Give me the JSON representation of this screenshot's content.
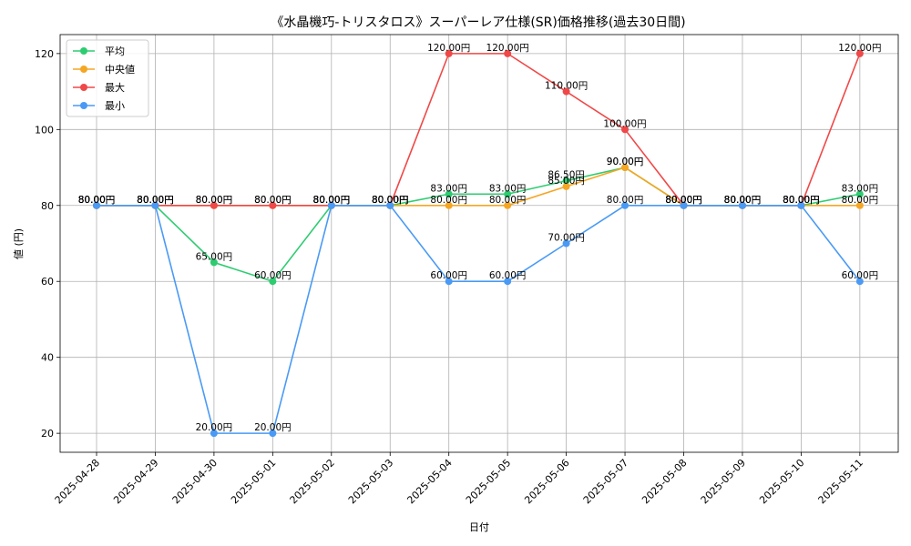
{
  "chart_data": {
    "type": "line",
    "title": "《水晶機巧-トリスタロス》スーパーレア仕様(SR)価格推移(過去30日間)",
    "xlabel": "日付",
    "ylabel": "値 (円)",
    "ylim": [
      15,
      125
    ],
    "yticks": [
      20,
      40,
      60,
      80,
      100,
      120
    ],
    "grid": true,
    "legend_position": "top-left",
    "label_suffix": "円",
    "categories": [
      "2025-04-28",
      "2025-04-29",
      "2025-04-30",
      "2025-05-01",
      "2025-05-02",
      "2025-05-03",
      "2025-05-04",
      "2025-05-05",
      "2025-05-06",
      "2025-05-07",
      "2025-05-08",
      "2025-05-09",
      "2025-05-10",
      "2025-05-11"
    ],
    "series": [
      {
        "name": "平均",
        "color": "#2ecc71",
        "values": [
          80,
          80,
          65,
          60,
          80,
          80,
          83,
          83,
          86.5,
          90,
          80,
          80,
          80,
          83
        ]
      },
      {
        "name": "中央値",
        "color": "#f5a623",
        "values": [
          80,
          80,
          80,
          80,
          80,
          80,
          80,
          80,
          85,
          90,
          80,
          80,
          80,
          80
        ]
      },
      {
        "name": "最大",
        "color": "#f04848",
        "values": [
          80,
          80,
          80,
          80,
          80,
          80,
          120,
          120,
          110,
          100,
          80,
          80,
          80,
          120
        ]
      },
      {
        "name": "最小",
        "color": "#4a9af5",
        "values": [
          80,
          80,
          20,
          20,
          80,
          80,
          60,
          60,
          70,
          80,
          80,
          80,
          80,
          60
        ]
      }
    ]
  }
}
